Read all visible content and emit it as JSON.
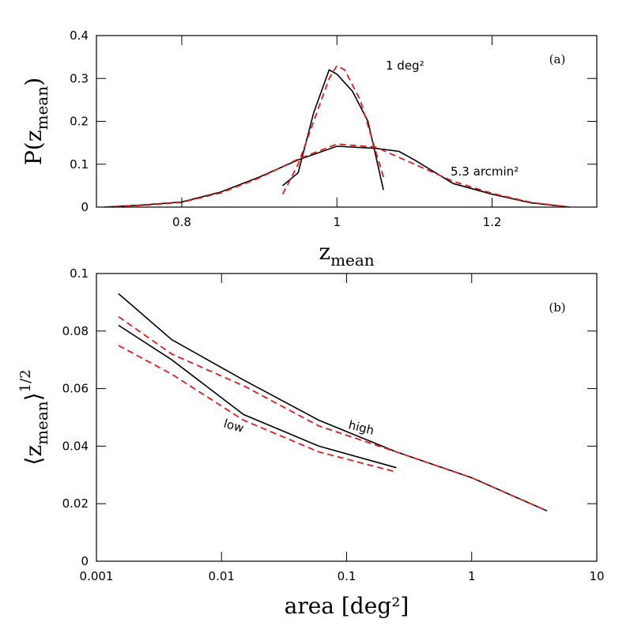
{
  "chart_data": [
    {
      "type": "line",
      "xlabel": [
        "z",
        "mean"
      ],
      "ylabel": [
        "P(z",
        "mean",
        ")"
      ],
      "xlim": [
        0.69,
        1.335
      ],
      "ylim": [
        0,
        0.4
      ],
      "xticks": [
        0.8,
        1,
        1.2
      ],
      "yticks": [
        0,
        0.1,
        0.2,
        0.3,
        0.4
      ],
      "annotations": [
        "(a)",
        "1 deg²",
        "5.3 arcmin²"
      ],
      "series": [
        {
          "color": "#000000",
          "style": "solid",
          "x": [
            0.93,
            0.95,
            0.97,
            0.99,
            1.0,
            1.02,
            1.04,
            1.05,
            1.06
          ],
          "values": [
            0.05,
            0.08,
            0.22,
            0.32,
            0.31,
            0.27,
            0.2,
            0.12,
            0.04
          ]
        },
        {
          "color": "#e41a1c",
          "style": "dashed",
          "x": [
            0.93,
            0.95,
            0.97,
            0.99,
            1.0,
            1.01,
            1.03,
            1.05,
            1.06
          ],
          "values": [
            0.03,
            0.1,
            0.2,
            0.3,
            0.33,
            0.32,
            0.25,
            0.13,
            0.07
          ]
        },
        {
          "color": "#000000",
          "style": "solid",
          "x": [
            0.7,
            0.75,
            0.8,
            0.85,
            0.9,
            0.95,
            1.0,
            1.05,
            1.08,
            1.1,
            1.15,
            1.2,
            1.25,
            1.3
          ],
          "values": [
            0,
            0.005,
            0.012,
            0.035,
            0.07,
            0.11,
            0.142,
            0.137,
            0.13,
            0.11,
            0.055,
            0.03,
            0.01,
            0
          ]
        },
        {
          "color": "#e41a1c",
          "style": "dashed",
          "x": [
            0.7,
            0.75,
            0.8,
            0.85,
            0.9,
            0.95,
            1.0,
            1.05,
            1.1,
            1.15,
            1.2,
            1.25,
            1.3
          ],
          "values": [
            0,
            0.004,
            0.011,
            0.033,
            0.068,
            0.112,
            0.147,
            0.14,
            0.1,
            0.06,
            0.032,
            0.011,
            0
          ]
        }
      ]
    },
    {
      "type": "line",
      "xscale": "log",
      "xlabel": [
        "area [deg²]"
      ],
      "ylabel": [
        "⟨z",
        "mean",
        "⟩",
        "1/2"
      ],
      "xlim": [
        0.001,
        10
      ],
      "ylim": [
        0,
        0.1
      ],
      "xticks": [
        0.001,
        0.01,
        0.1,
        1,
        10
      ],
      "yticks": [
        0,
        0.02,
        0.04,
        0.06,
        0.08,
        0.1
      ],
      "annotations": [
        "(b)",
        "high",
        "low"
      ],
      "series": [
        {
          "color": "#000000",
          "style": "solid",
          "x": [
            0.0015,
            0.004,
            0.015,
            0.06,
            0.25,
            1,
            4
          ],
          "values": [
            0.093,
            0.077,
            0.063,
            0.049,
            0.038,
            0.029,
            0.0175
          ]
        },
        {
          "color": "#000000",
          "style": "solid",
          "x": [
            0.0015,
            0.004,
            0.015,
            0.06,
            0.25
          ],
          "values": [
            0.082,
            0.07,
            0.051,
            0.04,
            0.0325
          ]
        },
        {
          "color": "#e41a1c",
          "style": "dashed",
          "x": [
            0.0015,
            0.004,
            0.015,
            0.06,
            0.25,
            1,
            4
          ],
          "values": [
            0.085,
            0.072,
            0.061,
            0.047,
            0.038,
            0.029,
            0.0175
          ]
        },
        {
          "color": "#e41a1c",
          "style": "dashed",
          "x": [
            0.0015,
            0.004,
            0.015,
            0.06,
            0.25
          ],
          "values": [
            0.075,
            0.065,
            0.049,
            0.038,
            0.031
          ]
        }
      ]
    }
  ]
}
